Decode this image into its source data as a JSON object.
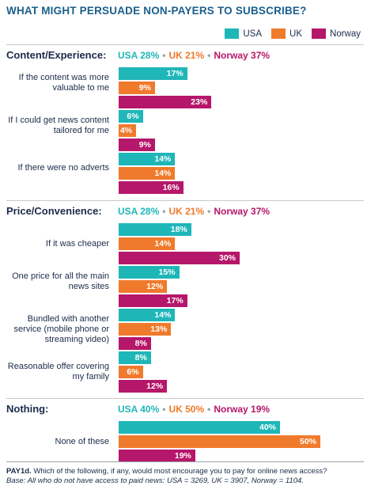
{
  "title": "WHAT MIGHT PERSUADE NON-PAYERS TO SUBSCRIBE?",
  "colors": {
    "USA": "#1fb6b8",
    "UK": "#f07a2c",
    "Norway": "#b5176a"
  },
  "legend": [
    {
      "name": "USA",
      "color": "#1fb6b8"
    },
    {
      "name": "UK",
      "color": "#f07a2c"
    },
    {
      "name": "Norway",
      "color": "#b5176a"
    }
  ],
  "chart_data": {
    "type": "bar",
    "orientation": "horizontal",
    "series_names": [
      "USA",
      "UK",
      "Norway"
    ],
    "value_unit": "%",
    "groups": [
      {
        "title": "Content/Experience:",
        "summary": [
          {
            "text": "USA 28%",
            "color": "#1fb6b8"
          },
          {
            "text": "UK 21%",
            "color": "#f07a2c"
          },
          {
            "text": "Norway 37%",
            "color": "#b5176a"
          }
        ],
        "categories": [
          {
            "label": "If the content was more valuable to me",
            "values": [
              17,
              9,
              23
            ]
          },
          {
            "label": "If I could get news content tailored for me",
            "values": [
              6,
              4,
              9
            ]
          },
          {
            "label": "If there were no adverts",
            "values": [
              14,
              14,
              16
            ]
          }
        ]
      },
      {
        "title": "Price/Convenience:",
        "summary": [
          {
            "text": "USA 28%",
            "color": "#1fb6b8"
          },
          {
            "text": "UK 21%",
            "color": "#f07a2c"
          },
          {
            "text": "Norway 37%",
            "color": "#b5176a"
          }
        ],
        "categories": [
          {
            "label": "If it was cheaper",
            "values": [
              18,
              14,
              30
            ]
          },
          {
            "label": "One price for all the main news sites",
            "values": [
              15,
              12,
              17
            ]
          },
          {
            "label": "Bundled with another service (mobile phone or streaming video)",
            "values": [
              14,
              13,
              8
            ]
          },
          {
            "label": "Reasonable offer covering my family",
            "values": [
              8,
              6,
              12
            ]
          }
        ]
      },
      {
        "title": "Nothing:",
        "summary": [
          {
            "text": "USA 40%",
            "color": "#1fb6b8"
          },
          {
            "text": "UK 50%",
            "color": "#f07a2c"
          },
          {
            "text": "Norway 19%",
            "color": "#b5176a"
          }
        ],
        "categories": [
          {
            "label": "None of these",
            "values": [
              40,
              50,
              19
            ]
          }
        ]
      }
    ]
  },
  "footnote": {
    "question_code": "PAY1d.",
    "question": "Which of the following, if any, would most encourage you to pay for online news access?",
    "base": "Base: All who do not have access to paid news: USA = 3269, UK = 3907, Norway = 1104."
  }
}
